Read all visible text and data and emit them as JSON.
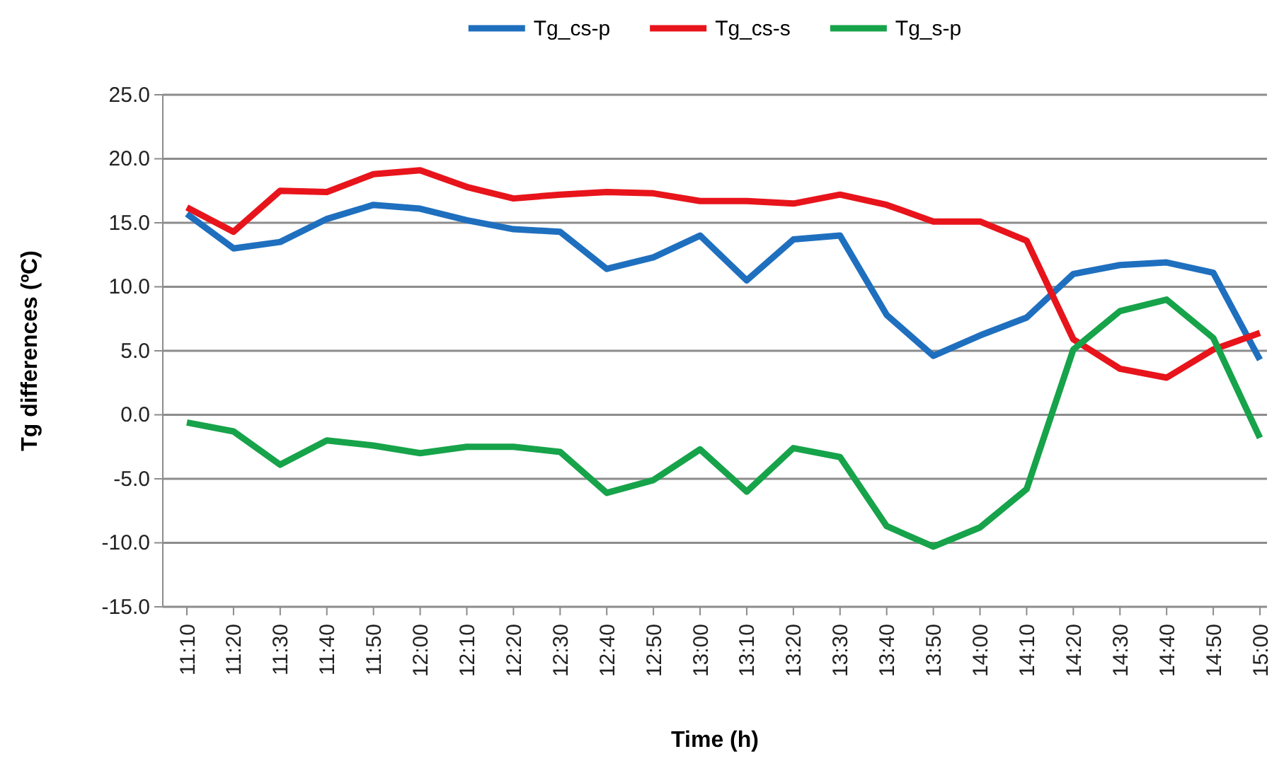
{
  "chart_data": {
    "type": "line",
    "xlabel": "Time (h)",
    "ylabel": "Tg differences (ºC)",
    "categories": [
      "11:10",
      "11:20",
      "11:30",
      "11:40",
      "11:50",
      "12:00",
      "12:10",
      "12:20",
      "12:30",
      "12:40",
      "12:50",
      "13:00",
      "13:10",
      "13:20",
      "13:30",
      "13:40",
      "13:50",
      "14:00",
      "14:10",
      "14:20",
      "14:30",
      "14:40",
      "14:50",
      "15:00"
    ],
    "series": [
      {
        "name": "Tg_cs-p",
        "color": "#1f6fbf",
        "values": [
          15.7,
          13.0,
          13.5,
          15.3,
          16.4,
          16.1,
          15.2,
          14.5,
          14.3,
          11.4,
          12.3,
          14.0,
          10.5,
          13.7,
          14.0,
          7.8,
          4.6,
          6.2,
          7.6,
          11.0,
          11.7,
          11.9,
          11.1,
          4.3
        ]
      },
      {
        "name": "Tg_cs-s",
        "color": "#e8141b",
        "values": [
          16.2,
          14.3,
          17.5,
          17.4,
          18.8,
          19.1,
          17.8,
          16.9,
          17.2,
          17.4,
          17.3,
          16.7,
          16.7,
          16.5,
          17.2,
          16.4,
          15.1,
          15.1,
          13.6,
          5.9,
          3.6,
          2.9,
          5.1,
          6.4
        ]
      },
      {
        "name": "Tg_s-p",
        "color": "#16a34a",
        "values": [
          -0.6,
          -1.3,
          -3.9,
          -2.0,
          -2.4,
          -3.0,
          -2.5,
          -2.5,
          -2.9,
          -6.1,
          -5.1,
          -2.7,
          -6.0,
          -2.6,
          -3.3,
          -8.7,
          -10.3,
          -8.8,
          -5.8,
          5.1,
          8.1,
          9.0,
          6.0,
          -1.8
        ]
      }
    ],
    "ylim": [
      -15,
      25
    ],
    "yticks": [
      {
        "value": -15,
        "label": "-15.0"
      },
      {
        "value": -10,
        "label": "-10.0"
      },
      {
        "value": -5,
        "label": "-5.0"
      },
      {
        "value": 0,
        "label": "0.0"
      },
      {
        "value": 5,
        "label": "5.0"
      },
      {
        "value": 10,
        "label": "10.0"
      },
      {
        "value": 15,
        "label": "15.0"
      },
      {
        "value": 20,
        "label": "20.0"
      },
      {
        "value": 25,
        "label": "25.0"
      }
    ],
    "grid": "y",
    "legend": "top",
    "marker": "none",
    "line_style": "solid"
  }
}
